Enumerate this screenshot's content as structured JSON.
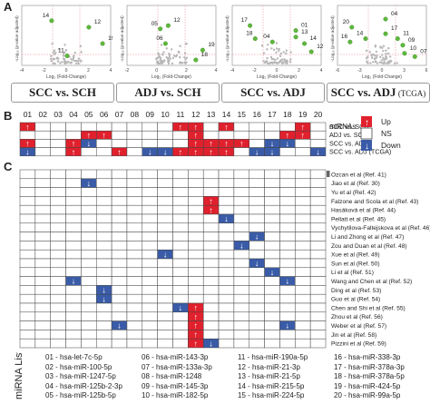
{
  "panels": {
    "a": "A",
    "b": "B",
    "c": "C"
  },
  "volcano": [
    {
      "caption": "SCC vs. SCH",
      "caption_extra": "",
      "labels": [
        {
          "t": "14"
        },
        {
          "t": "11"
        },
        {
          "t": "12"
        },
        {
          "t": "19"
        }
      ],
      "ylabel": "-Log₁₀ (p-value adjusted)",
      "xlabel": "Log₂ (Fold-Change)",
      "xticks": [
        "-4",
        "-2",
        "0",
        "2",
        "4"
      ]
    },
    {
      "caption": "ADJ vs. SCH",
      "caption_extra": "",
      "labels": [
        {
          "t": "05"
        },
        {
          "t": "06"
        },
        {
          "t": "12"
        },
        {
          "t": "18"
        },
        {
          "t": "19"
        }
      ],
      "ylabel": "-Log₁₀ (p-value adjusted)",
      "xlabel": "Log₂ (Fold-Change)",
      "xticks": [
        "-2",
        "0",
        "2",
        "4"
      ]
    },
    {
      "caption": "SCC vs. ADJ",
      "caption_extra": "",
      "labels": [
        {
          "t": "17"
        },
        {
          "t": "18"
        },
        {
          "t": "04"
        },
        {
          "t": "01"
        },
        {
          "t": "13"
        },
        {
          "t": "14"
        },
        {
          "t": "12"
        }
      ],
      "ylabel": "-Log₁₀ (p-value adjusted)",
      "xlabel": "Log₂ (Fold-Change)",
      "xticks": [
        "-4",
        "-2",
        "0",
        "2",
        "4"
      ]
    },
    {
      "caption": "SCC vs. ADJ",
      "caption_extra": "(TCGA)",
      "labels": [
        {
          "t": "20"
        },
        {
          "t": "16"
        },
        {
          "t": "14"
        },
        {
          "t": "04"
        },
        {
          "t": "17"
        },
        {
          "t": "11"
        },
        {
          "t": "09"
        },
        {
          "t": "10"
        },
        {
          "t": "07"
        }
      ],
      "ylabel": "-Log₁₀ (p-value adjusted)",
      "xlabel": "Log₂ (Fold-Change)",
      "xticks": [
        "-6",
        "-3",
        "0",
        "3",
        "6"
      ]
    }
  ],
  "grid_b": {
    "columns": [
      "01",
      "02",
      "03",
      "04",
      "05",
      "06",
      "07",
      "08",
      "09",
      "10",
      "11",
      "12",
      "13",
      "14",
      "15",
      "16",
      "17",
      "18",
      "19",
      "20"
    ],
    "title": "miRNAs",
    "rows": [
      {
        "label": "SCC vs. SCH",
        "cells": [
          "U",
          "N",
          "N",
          "N",
          "N",
          "N",
          "N",
          "N",
          "N",
          "N",
          "U",
          "U",
          "N",
          "U",
          "N",
          "N",
          "N",
          "N",
          "U",
          "N"
        ]
      },
      {
        "label": "ADJ vs. SCH",
        "cells": [
          "N",
          "N",
          "N",
          "N",
          "U",
          "U",
          "N",
          "N",
          "N",
          "N",
          "N",
          "U",
          "N",
          "N",
          "N",
          "N",
          "N",
          "U",
          "U",
          "N"
        ]
      },
      {
        "label": "SCC vs. ADJ",
        "cells": [
          "U",
          "N",
          "N",
          "U",
          "D",
          "N",
          "N",
          "N",
          "N",
          "N",
          "N",
          "U",
          "U",
          "U",
          "U",
          "N",
          "D",
          "D",
          "N",
          "N"
        ]
      },
      {
        "label": "SCC vs. ADJ (TCGA)",
        "cells": [
          "D",
          "N",
          "N",
          "U",
          "N",
          "N",
          "U",
          "N",
          "D",
          "D",
          "U",
          "U",
          "U",
          "U",
          "N",
          "D",
          "D",
          "N",
          "N",
          "D"
        ]
      }
    ],
    "legend": {
      "up": "Up",
      "ns": "NS",
      "down": "Down",
      "up_color": "#e0212d",
      "down_color": "#3a5ca8"
    }
  },
  "grid_c": {
    "rows": [
      {
        "label": "Ozcan et al (Ref. 41)",
        "cells": {}
      },
      {
        "label": "Jiao et al (Ref. 30)",
        "cells": {
          "05": "D"
        }
      },
      {
        "label": "Yu et al (Ref. 42)",
        "cells": {}
      },
      {
        "label": "Falzone and Scola et al (Ref. 43)",
        "cells": {
          "13": "U"
        }
      },
      {
        "label": "Hasáková et al (Ref. 44)",
        "cells": {
          "13": "U"
        }
      },
      {
        "label": "Pellatt et al (Ref. 45)",
        "cells": {
          "14": "D"
        }
      },
      {
        "label": "Vychytilova-Faltejskova et al (Ref. 46)",
        "cells": {}
      },
      {
        "label": "Li and Zhong et al (Ref. 47)",
        "cells": {
          "16": "D"
        }
      },
      {
        "label": "Zou and Duan et al (Ref. 48)",
        "cells": {
          "15": "D"
        }
      },
      {
        "label": "Xue et al (Ref. 49)",
        "cells": {
          "10": "D"
        }
      },
      {
        "label": "Sun et al (Ref. 50)",
        "cells": {
          "16": "D"
        }
      },
      {
        "label": "Li et al (Ref. 51)",
        "cells": {
          "17": "D"
        }
      },
      {
        "label": "Wang and Chen et al (Ref. 52)",
        "cells": {
          "04": "D",
          "18": "D"
        }
      },
      {
        "label": "Ding et al (Ref. 53)",
        "cells": {
          "06": "D"
        }
      },
      {
        "label": "Guo et al (Ref. 54)",
        "cells": {
          "06": "D"
        }
      },
      {
        "label": "Chen and Shi et al (Ref. 55)",
        "cells": {
          "11": "D",
          "12": "U"
        }
      },
      {
        "label": "Zhou et al (Ref. 56)",
        "cells": {
          "12": "U"
        }
      },
      {
        "label": "Weber et al (Ref. 57)",
        "cells": {
          "07": "D",
          "12": "U",
          "18": "D"
        }
      },
      {
        "label": "Jin et al (Ref. 58)",
        "cells": {
          "12": "U"
        }
      },
      {
        "label": "Pizzini et al (Ref. 59)",
        "cells": {
          "12": "U",
          "13": "D"
        }
      }
    ]
  },
  "mirna_list": {
    "title": "miRNA List",
    "items": [
      "01 - hsa-let-7c-5p",
      "02 - hsa-miR-100-5p",
      "03 - hsa-miR-1247-5p",
      "04 - hsa-miR-125b-2-3p",
      "05 - hsa-miR-125b-5p",
      "06 - hsa-miR-143-3p",
      "07 - hsa-miR-133a-3p",
      "08 - hsa-miR-1248",
      "09 - hsa-miR-145-3p",
      "10 - hsa-miR-182-5p",
      "11 - hsa-miR-190a-5p",
      "12 - hsa-miR-21-3p",
      "13 - hsa-miR-21-5p",
      "14 - hsa-miR-215-5p",
      "15 - hsa-miR-224-5p",
      "16 - hsa-miR-338-3p",
      "17 - hsa-miR-378a-3p",
      "18 - hsa-miR-378a-5p",
      "19 - hsa-miR-424-5p",
      "20 - hsa-miR-99a-5p"
    ]
  }
}
